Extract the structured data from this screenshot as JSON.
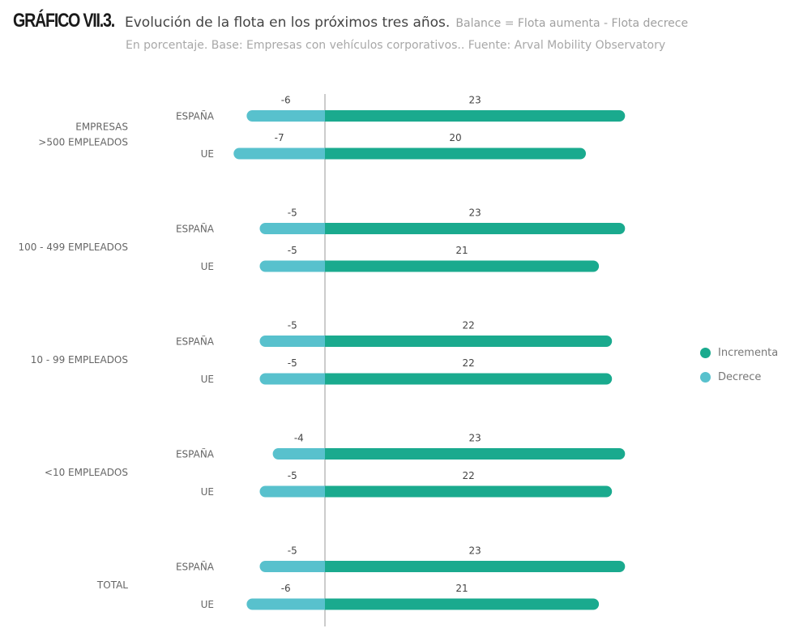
{
  "header": {
    "tag": "GRÁFICO VII.3.",
    "title": "Evolución de la flota en los próximos tres años.",
    "balance_note": "Balance = Flota aumenta - Flota decrece",
    "subtitle": "En porcentaje. Base: Empresas con vehículos corporativos.. Fuente: Arval Mobility Observatory"
  },
  "colors": {
    "increase": "#1aaa8e",
    "decrease": "#58c1cd",
    "axis": "#aaaaaa",
    "label": "#666666",
    "value": "#444444"
  },
  "legend": {
    "increase_label": "Incrementa",
    "decrease_label": "Decrece"
  },
  "chart_data": {
    "type": "bar",
    "orientation": "horizontal",
    "stacked": "diverging",
    "title": "Evolución de la flota en los próximos tres años.",
    "xlim": [
      -10,
      25
    ],
    "series_names": [
      "Incrementa",
      "Decrece"
    ],
    "groups": [
      {
        "label_lines": [
          "EMPRESAS",
          ">500 EMPLEADOS"
        ],
        "rows": [
          {
            "label": "ESPAÑA",
            "decrease": -6,
            "increase": 23
          },
          {
            "label": "UE",
            "decrease": -7,
            "increase": 20
          }
        ]
      },
      {
        "label_lines": [
          "100 - 499 EMPLEADOS"
        ],
        "rows": [
          {
            "label": "ESPAÑA",
            "decrease": -5,
            "increase": 23
          },
          {
            "label": "UE",
            "decrease": -5,
            "increase": 21
          }
        ]
      },
      {
        "label_lines": [
          "10  - 99 EMPLEADOS"
        ],
        "rows": [
          {
            "label": "ESPAÑA",
            "decrease": -5,
            "increase": 22
          },
          {
            "label": "UE",
            "decrease": -5,
            "increase": 22
          }
        ]
      },
      {
        "label_lines": [
          "<10 EMPLEADOS"
        ],
        "rows": [
          {
            "label": "ESPAÑA",
            "decrease": -4,
            "increase": 23
          },
          {
            "label": "UE",
            "decrease": -5,
            "increase": 22
          }
        ]
      },
      {
        "label_lines": [
          "TOTAL"
        ],
        "rows": [
          {
            "label": "ESPAÑA",
            "decrease": -5,
            "increase": 23
          },
          {
            "label": "UE",
            "decrease": -6,
            "increase": 21
          }
        ]
      }
    ]
  }
}
